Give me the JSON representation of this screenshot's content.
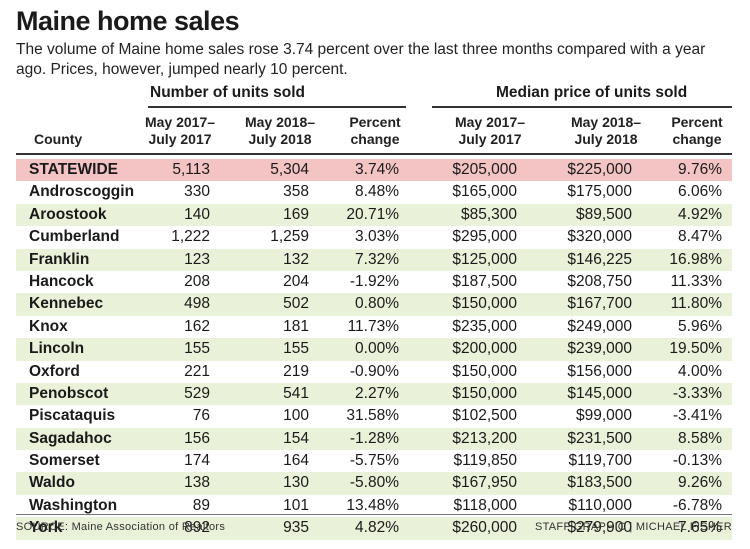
{
  "title": "Maine home sales",
  "subtitle": "The volume of Maine home sales rose 3.74 percent over the last three months compared with a year ago. Prices, however, jumped nearly 10 percent.",
  "groups": {
    "units": "Number of units sold",
    "price": "Median price of units sold"
  },
  "headers": {
    "county": "County",
    "units_2017_a": "May 2017–",
    "units_2017_b": "July 2017",
    "units_2018_a": "May 2018–",
    "units_2018_b": "July 2018",
    "units_pct_a": "Percent",
    "units_pct_b": "change",
    "price_2017_a": "May 2017–",
    "price_2017_b": "July 2017",
    "price_2018_a": "May 2018–",
    "price_2018_b": "July 2018",
    "price_pct_a": "Percent",
    "price_pct_b": "change"
  },
  "rows": [
    {
      "county": "STATEWIDE",
      "u17": "5,113",
      "u18": "5,304",
      "upct": "3.74%",
      "p17": "$205,000",
      "p18": "$225,000",
      "ppct": "9.76%"
    },
    {
      "county": "Androscoggin",
      "u17": "330",
      "u18": "358",
      "upct": "8.48%",
      "p17": "$165,000",
      "p18": "$175,000",
      "ppct": "6.06%"
    },
    {
      "county": "Aroostook",
      "u17": "140",
      "u18": "169",
      "upct": "20.71%",
      "p17": "$85,300",
      "p18": "$89,500",
      "ppct": "4.92%"
    },
    {
      "county": "Cumberland",
      "u17": "1,222",
      "u18": "1,259",
      "upct": "3.03%",
      "p17": "$295,000",
      "p18": "$320,000",
      "ppct": "8.47%"
    },
    {
      "county": "Franklin",
      "u17": "123",
      "u18": "132",
      "upct": "7.32%",
      "p17": "$125,000",
      "p18": "$146,225",
      "ppct": "16.98%"
    },
    {
      "county": "Hancock",
      "u17": "208",
      "u18": "204",
      "upct": "-1.92%",
      "p17": "$187,500",
      "p18": "$208,750",
      "ppct": "11.33%"
    },
    {
      "county": "Kennebec",
      "u17": "498",
      "u18": "502",
      "upct": "0.80%",
      "p17": "$150,000",
      "p18": "$167,700",
      "ppct": "11.80%"
    },
    {
      "county": "Knox",
      "u17": "162",
      "u18": "181",
      "upct": "11.73%",
      "p17": "$235,000",
      "p18": "$249,000",
      "ppct": "5.96%"
    },
    {
      "county": "Lincoln",
      "u17": "155",
      "u18": "155",
      "upct": "0.00%",
      "p17": "$200,000",
      "p18": "$239,000",
      "ppct": "19.50%"
    },
    {
      "county": "Oxford",
      "u17": "221",
      "u18": "219",
      "upct": "-0.90%",
      "p17": "$150,000",
      "p18": "$156,000",
      "ppct": "4.00%"
    },
    {
      "county": "Penobscot",
      "u17": "529",
      "u18": "541",
      "upct": "2.27%",
      "p17": "$150,000",
      "p18": "$145,000",
      "ppct": "-3.33%"
    },
    {
      "county": "Piscataquis",
      "u17": "76",
      "u18": "100",
      "upct": "31.58%",
      "p17": "$102,500",
      "p18": "$99,000",
      "ppct": "-3.41%"
    },
    {
      "county": "Sagadahoc",
      "u17": "156",
      "u18": "154",
      "upct": "-1.28%",
      "p17": "$213,200",
      "p18": "$231,500",
      "ppct": "8.58%"
    },
    {
      "county": "Somerset",
      "u17": "174",
      "u18": "164",
      "upct": "-5.75%",
      "p17": "$119,850",
      "p18": "$119,700",
      "ppct": "-0.13%"
    },
    {
      "county": "Waldo",
      "u17": "138",
      "u18": "130",
      "upct": "-5.80%",
      "p17": "$167,950",
      "p18": "$183,500",
      "ppct": "9.26%"
    },
    {
      "county": "Washington",
      "u17": "89",
      "u18": "101",
      "upct": "13.48%",
      "p17": "$118,000",
      "p18": "$110,000",
      "ppct": "-6.78%"
    },
    {
      "county": "York",
      "u17": "892",
      "u18": "935",
      "upct": "4.82%",
      "p17": "$260,000",
      "p18": "$279,900",
      "ppct": "7.65%"
    }
  ],
  "source": "SOURCE: Maine Association of Realtors",
  "credit": "STAFF GRAPHIC | MICHAEL FISHER",
  "colors": {
    "statewide_highlight": "#f4c3c3",
    "alt_row": "#e9f1d8",
    "rules": "#333333"
  }
}
